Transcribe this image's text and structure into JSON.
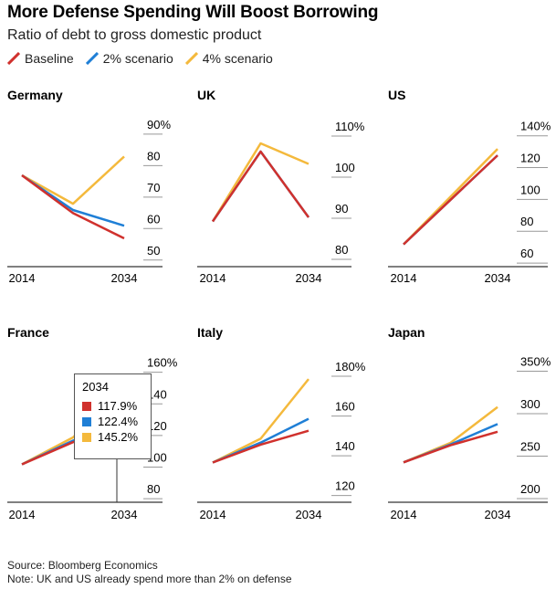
{
  "title": "More Defense Spending Will Boost Borrowing",
  "subtitle": "Ratio of debt to gross domestic product",
  "legend": [
    {
      "label": "Baseline",
      "color": "#d0312d"
    },
    {
      "label": "2% scenario",
      "color": "#1f7fd6"
    },
    {
      "label": "4% scenario",
      "color": "#f4b93c"
    }
  ],
  "tooltip": {
    "title": "2034",
    "rows": [
      {
        "value": "117.9%",
        "color": "#d0312d"
      },
      {
        "value": "122.4%",
        "color": "#1f7fd6"
      },
      {
        "value": "145.2%",
        "color": "#f4b93c"
      }
    ]
  },
  "footer": {
    "source": "Source: Bloomberg Economics",
    "note": "Note: UK and US already spend more than 2% on defense"
  },
  "chart_data": [
    {
      "type": "line",
      "title": "Germany",
      "x": [
        2014,
        2024,
        2034
      ],
      "xticks": [
        "2014",
        "2034"
      ],
      "ylim": [
        45,
        92
      ],
      "yticks": [
        90,
        80,
        70,
        60,
        50
      ],
      "ytick_labels": [
        "90%",
        "80",
        "70",
        "60",
        "50"
      ],
      "series": [
        {
          "name": "Baseline",
          "color": "#d0312d",
          "values": [
            74,
            62,
            54
          ]
        },
        {
          "name": "2% scenario",
          "color": "#1f7fd6",
          "values": [
            74,
            63,
            58
          ]
        },
        {
          "name": "4% scenario",
          "color": "#f4b93c",
          "values": [
            74,
            65,
            80
          ]
        }
      ]
    },
    {
      "type": "line",
      "title": "UK",
      "x": [
        2014,
        2024,
        2034
      ],
      "xticks": [
        "2014",
        "2034"
      ],
      "ylim": [
        76,
        112
      ],
      "yticks": [
        110,
        100,
        90,
        80
      ],
      "ytick_labels": [
        "110%",
        "100",
        "90",
        "80"
      ],
      "series": [
        {
          "name": "Baseline",
          "color": "#d0312d",
          "values": [
            87,
            104,
            88
          ]
        },
        {
          "name": "2% scenario",
          "color": "#1f7fd6",
          "values": [
            87,
            104,
            88
          ]
        },
        {
          "name": "4% scenario",
          "color": "#f4b93c",
          "values": [
            87,
            106,
            101
          ]
        }
      ]
    },
    {
      "type": "line",
      "title": "US",
      "x": [
        2014,
        2024,
        2034
      ],
      "xticks": [
        "2014",
        "2034"
      ],
      "ylim": [
        52,
        145
      ],
      "yticks": [
        140,
        120,
        100,
        80,
        60
      ],
      "ytick_labels": [
        "140%",
        "120",
        "100",
        "80",
        "60"
      ],
      "series": [
        {
          "name": "Baseline",
          "color": "#d0312d",
          "values": [
            66,
            94,
            122
          ]
        },
        {
          "name": "2% scenario",
          "color": "#1f7fd6",
          "values": [
            66,
            94,
            122
          ]
        },
        {
          "name": "4% scenario",
          "color": "#f4b93c",
          "values": [
            66,
            96,
            126
          ]
        }
      ]
    },
    {
      "type": "line",
      "title": "France",
      "x": [
        2014,
        2024,
        2034
      ],
      "xticks": [
        "2014",
        "2034"
      ],
      "ylim": [
        72,
        165
      ],
      "yticks": [
        160,
        140,
        120,
        100,
        80
      ],
      "ytick_labels": [
        "160%",
        "140",
        "120",
        "100",
        "80"
      ],
      "series": [
        {
          "name": "Baseline",
          "color": "#d0312d",
          "values": [
            96,
            110,
            117.9
          ]
        },
        {
          "name": "2% scenario",
          "color": "#1f7fd6",
          "values": [
            96,
            111,
            122.4
          ]
        },
        {
          "name": "4% scenario",
          "color": "#f4b93c",
          "values": [
            96,
            113,
            145.2
          ]
        }
      ]
    },
    {
      "type": "line",
      "title": "Italy",
      "x": [
        2014,
        2024,
        2034
      ],
      "xticks": [
        "2014",
        "2034"
      ],
      "ylim": [
        112,
        186
      ],
      "yticks": [
        180,
        160,
        140,
        120
      ],
      "ytick_labels": [
        "180%",
        "160",
        "140",
        "120"
      ],
      "series": [
        {
          "name": "Baseline",
          "color": "#d0312d",
          "values": [
            132,
            141,
            148
          ]
        },
        {
          "name": "2% scenario",
          "color": "#1f7fd6",
          "values": [
            132,
            142,
            154
          ]
        },
        {
          "name": "4% scenario",
          "color": "#f4b93c",
          "values": [
            132,
            144,
            174
          ]
        }
      ]
    },
    {
      "type": "line",
      "title": "Japan",
      "x": [
        2014,
        2024,
        2034
      ],
      "xticks": [
        "2014",
        "2034"
      ],
      "ylim": [
        185,
        358
      ],
      "yticks": [
        350,
        300,
        250,
        200
      ],
      "ytick_labels": [
        "350%",
        "300",
        "250",
        "200"
      ],
      "series": [
        {
          "name": "Baseline",
          "color": "#d0312d",
          "values": [
            232,
            252,
            268
          ]
        },
        {
          "name": "2% scenario",
          "color": "#1f7fd6",
          "values": [
            232,
            253,
            277
          ]
        },
        {
          "name": "4% scenario",
          "color": "#f4b93c",
          "values": [
            232,
            255,
            297
          ]
        }
      ]
    }
  ]
}
